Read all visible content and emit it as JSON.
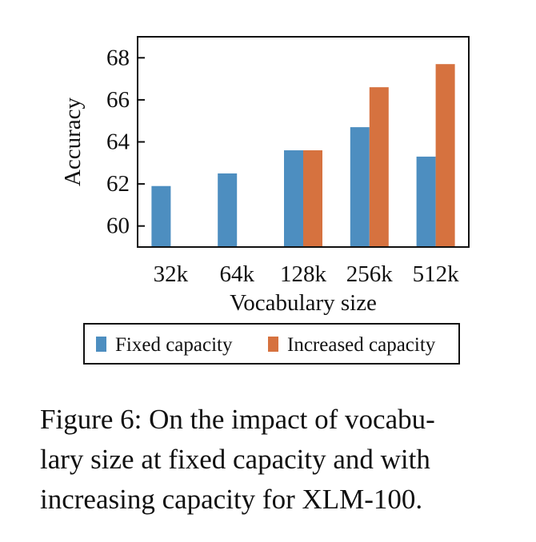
{
  "chart_data": {
    "type": "bar",
    "categories": [
      "32k",
      "64k",
      "128k",
      "256k",
      "512k"
    ],
    "series": [
      {
        "name": "Fixed capacity",
        "color": "#4d8ec0",
        "values": [
          61.9,
          62.5,
          63.6,
          64.7,
          63.3
        ]
      },
      {
        "name": "Increased capacity",
        "color": "#d6723f",
        "values": [
          null,
          null,
          63.6,
          66.6,
          67.7
        ]
      }
    ],
    "xlabel": "Vocabulary size",
    "ylabel": "Accuracy",
    "ylim": [
      59,
      69
    ],
    "yticks": [
      60,
      62,
      64,
      66,
      68
    ],
    "legend_position": "bottom",
    "grid": false
  },
  "caption": {
    "lines": [
      "Figure 6: On the impact of vocabu-",
      "lary size at fixed capacity and with",
      "increasing capacity for XLM-100."
    ]
  }
}
